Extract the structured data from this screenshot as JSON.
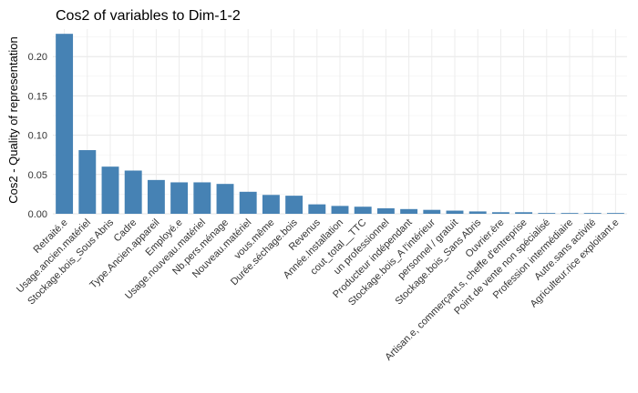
{
  "chart_data": {
    "type": "bar",
    "title": "Cos2 of variables to Dim-1-2",
    "xlabel": "",
    "ylabel": "Cos2 - Quality of representation",
    "ylim": [
      0,
      0.235
    ],
    "yticks": [
      "0.00",
      "0.05",
      "0.10",
      "0.15",
      "0.20"
    ],
    "grid": true,
    "bar_color": "#4682B4",
    "categories": [
      "Retraité.e",
      "Usage.ancien.matériel",
      "Stockage.bois_Sous Abris",
      "Cadre",
      "Type.Ancien.appareil",
      "Employé.e",
      "Usage.nouveau.matériel",
      "Nb.pers.ménage",
      "Nouveau.matériel",
      "vous.même",
      "Durée.séchage.bois",
      "Revenus",
      "Année.Installation",
      "cout_total__TTC",
      "un professionnel",
      "Producteur indépendant",
      "Stockage.bois_A l'intérieur",
      "personnel / gratuit",
      "Stockage.bois_Sans Abris",
      "Ouvrier.ère",
      "Artisan.e, commerçant.s, cheffe d'entreprise",
      "Point de vente non spécialisé",
      "Profession intermédiaire",
      "Autre.sans activité",
      "Agriculteur.rice exploitant.e"
    ],
    "values": [
      0.229,
      0.081,
      0.06,
      0.055,
      0.043,
      0.04,
      0.04,
      0.038,
      0.028,
      0.024,
      0.023,
      0.012,
      0.01,
      0.009,
      0.007,
      0.006,
      0.005,
      0.004,
      0.003,
      0.002,
      0.002,
      0.001,
      0.001,
      0.001,
      0.001
    ]
  }
}
